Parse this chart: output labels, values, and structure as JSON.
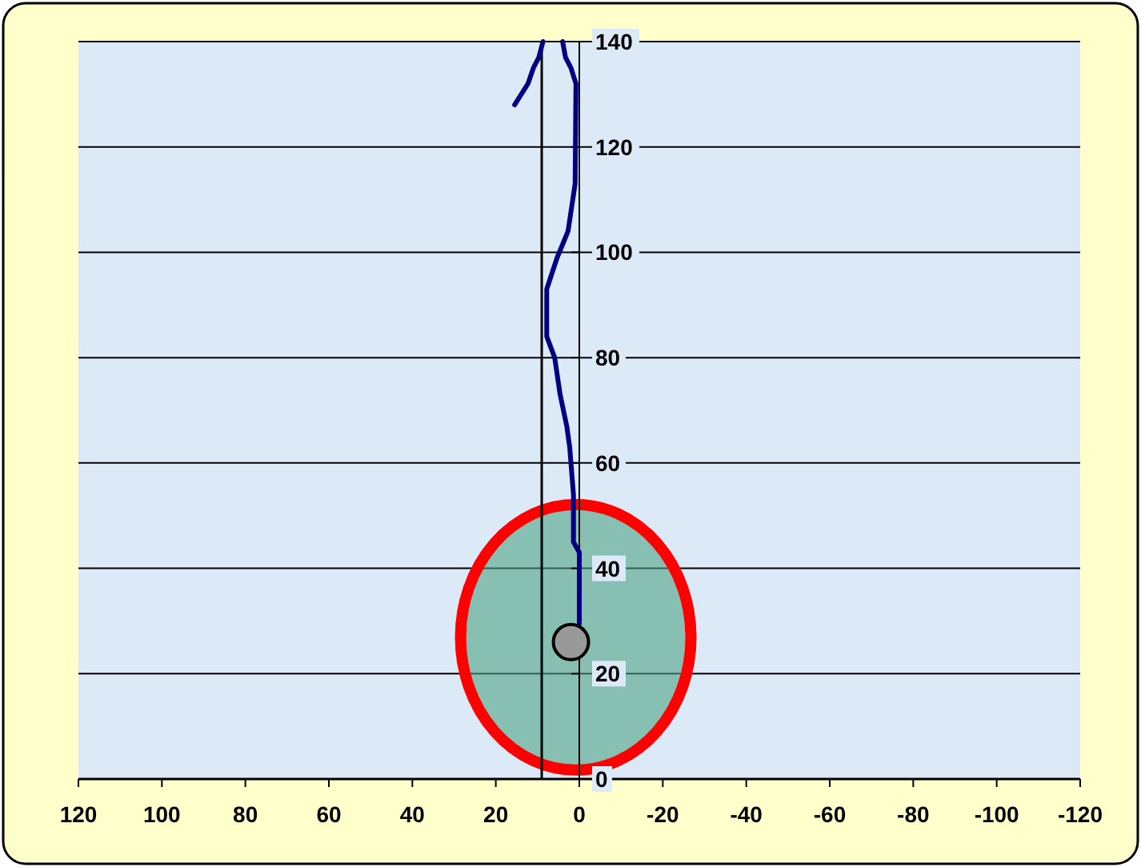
{
  "chart_data": {
    "type": "line",
    "xlim": [
      120,
      -120
    ],
    "xticks": [
      120,
      100,
      80,
      60,
      40,
      20,
      0,
      -20,
      -40,
      -60,
      -80,
      -100,
      -120
    ],
    "ylim": [
      0,
      140
    ],
    "yticks": [
      0,
      20,
      40,
      60,
      80,
      100,
      120,
      140
    ],
    "grid": "y",
    "line_style": "solid",
    "series": [
      {
        "color": "#000080",
        "marker": "none",
        "x": [
          0,
          0,
          1.4,
          1.4,
          2.3,
          3,
          4.6,
          5.9,
          7.8,
          7.8,
          5.3,
          2.7,
          1,
          0.8,
          2,
          3.3,
          4,
          null,
          8.7,
          9.7,
          11,
          12.3,
          15.5
        ],
        "values": [
          29.5,
          43,
          45,
          54,
          63,
          67,
          73,
          80,
          84,
          93,
          99,
          104,
          113,
          132,
          135,
          137,
          140,
          null,
          140,
          137,
          135,
          132,
          128
        ]
      },
      {
        "type": "scatter",
        "color": "#999999",
        "marker": "circle",
        "x": [
          2
        ],
        "values": [
          26
        ]
      }
    ],
    "ref_lines": [
      {
        "axis": "x",
        "value": 9,
        "color": "#000000",
        "line_style": "solid"
      }
    ]
  }
}
